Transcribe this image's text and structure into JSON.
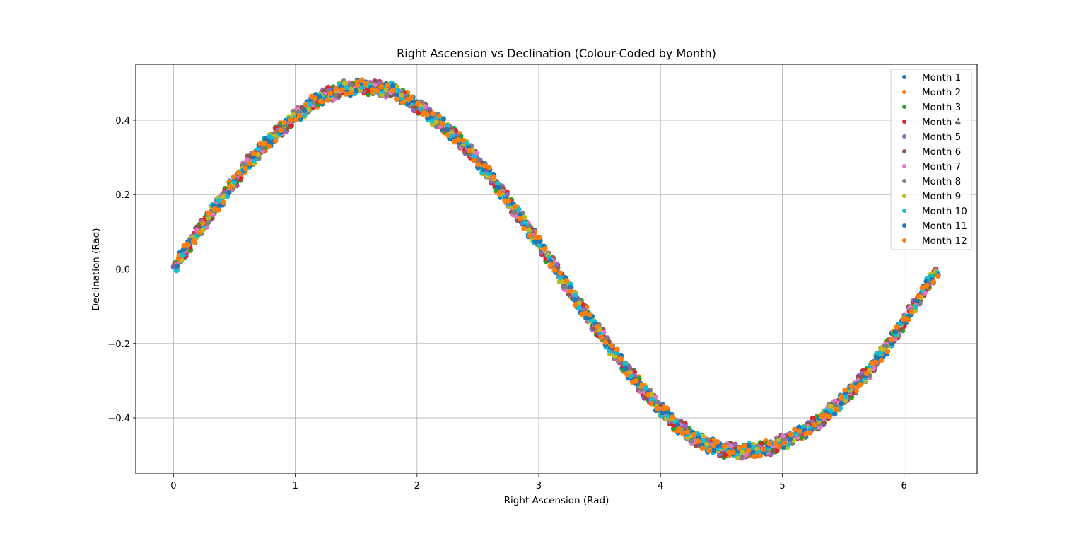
{
  "chart_data": {
    "type": "scatter",
    "title": "Right Ascension vs Declination (Colour-Coded by Month)",
    "xlabel": "Right Ascension (Rad)",
    "ylabel": "Declination (Rad)",
    "xlim": [
      -0.31,
      6.6
    ],
    "ylim": [
      -0.55,
      0.55
    ],
    "x_ticks": [
      0,
      1,
      2,
      3,
      4,
      5,
      6
    ],
    "x_tick_labels": [
      "0",
      "1",
      "2",
      "3",
      "4",
      "5",
      "6"
    ],
    "y_ticks": [
      -0.4,
      -0.2,
      0.0,
      0.2,
      0.4
    ],
    "y_tick_labels": [
      "−0.4",
      "−0.2",
      "0.0",
      "0.2",
      "0.4"
    ],
    "grid": true,
    "legend_position": "top-right",
    "curve": {
      "x": [
        0.0,
        0.2,
        0.4,
        0.6,
        0.8,
        1.0,
        1.2,
        1.4,
        1.57,
        1.8,
        2.0,
        2.2,
        2.4,
        2.6,
        2.8,
        3.0,
        3.14,
        3.3,
        3.5,
        3.7,
        3.9,
        4.1,
        4.3,
        4.5,
        4.71,
        4.9,
        5.1,
        5.3,
        5.5,
        5.7,
        5.9,
        6.1,
        6.28
      ],
      "y": [
        0.0,
        0.1,
        0.19,
        0.28,
        0.35,
        0.41,
        0.46,
        0.485,
        0.49,
        0.48,
        0.44,
        0.39,
        0.33,
        0.25,
        0.16,
        0.07,
        0.0,
        -0.08,
        -0.17,
        -0.26,
        -0.34,
        -0.41,
        -0.46,
        -0.485,
        -0.49,
        -0.48,
        -0.45,
        -0.41,
        -0.35,
        -0.28,
        -0.19,
        -0.09,
        0.0
      ]
    },
    "series": [
      {
        "name": "Month 1",
        "color": "#1f77b4"
      },
      {
        "name": "Month 2",
        "color": "#ff7f0e"
      },
      {
        "name": "Month 3",
        "color": "#2ca02c"
      },
      {
        "name": "Month 4",
        "color": "#d62728"
      },
      {
        "name": "Month 5",
        "color": "#9467bd"
      },
      {
        "name": "Month 6",
        "color": "#8c564b"
      },
      {
        "name": "Month 7",
        "color": "#e377c2"
      },
      {
        "name": "Month 8",
        "color": "#7f7f7f"
      },
      {
        "name": "Month 9",
        "color": "#bcbd22"
      },
      {
        "name": "Month 10",
        "color": "#17becf"
      },
      {
        "name": "Month 11",
        "color": "#1f77b4"
      },
      {
        "name": "Month 12",
        "color": "#ff7f0e"
      }
    ]
  }
}
